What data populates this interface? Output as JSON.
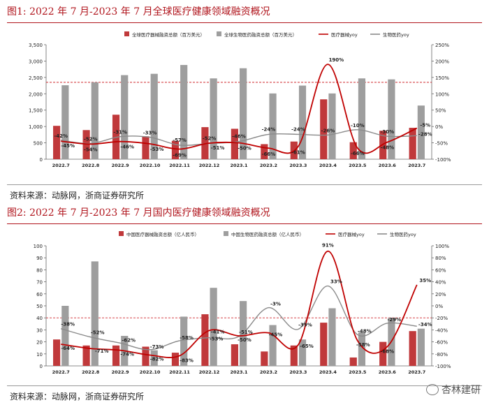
{
  "figures": [
    {
      "title": "图1:   2022 年 7 月-2023 年 7 月全球医疗健康领域融资概况",
      "source": "资料来源：动脉网，浙商证券研究所",
      "chart_data": {
        "type": "bar",
        "categories": [
          "2022.7",
          "2022.8",
          "2022.9",
          "2022.10",
          "2022.11",
          "2022.12",
          "2023.1",
          "2023.2",
          "2023.3",
          "2023.4",
          "2023.5",
          "2023.6",
          "2023.7"
        ],
        "bar_series": [
          {
            "name": "全球医疗器械融资总额（百万美元）",
            "color": "#c0393b",
            "values": [
              1020,
              890,
              1360,
              700,
              560,
              980,
              930,
              460,
              540,
              1830,
              520,
              870,
              960
            ]
          },
          {
            "name": "全球生物医药融资总额（百万美元）",
            "color": "#9e9e9e",
            "values": [
              2260,
              2350,
              2570,
              2610,
              2880,
              2470,
              2780,
              2010,
              2250,
              2010,
              2470,
              2440,
              1640
            ]
          }
        ],
        "line_series": [
          {
            "name": "医疗器械yoy",
            "color": "#c00000",
            "values": [
              -45,
              -54,
              -46,
              -53,
              -69,
              -51,
              -50,
              -66,
              -61,
              190,
              -66,
              -48,
              -5
            ],
            "labels": [
              "-45%",
              "-54%",
              "-46%",
              "-53%",
              "-69%",
              "-51%",
              "-50%",
              "-66%",
              "-61%",
              "190%",
              "-66%",
              "-48%",
              "-5%"
            ]
          },
          {
            "name": "生物医药yoy",
            "color": "#8a8a8a",
            "values": [
              -42,
              -52,
              -31,
              -33,
              -57,
              -52,
              -46,
              -24,
              -24,
              -26,
              -10,
              -30,
              -28
            ],
            "labels": [
              "-42%",
              "-52%",
              "-31%",
              "-33%",
              "-57%",
              "-52%",
              "-46%",
              "-24%",
              "-24%",
              "-26%",
              "-10%",
              "-30%",
              "-28%"
            ]
          }
        ],
        "y_left": {
          "min": 0,
          "max": 3500,
          "ticks": [
            0,
            500,
            1000,
            1500,
            2000,
            2500,
            3000,
            3500
          ],
          "tick_labels": [
            "0",
            "500",
            "1,000",
            "1,500",
            "2,000",
            "2,500",
            "3,000",
            "3,500"
          ]
        },
        "y_right": {
          "min": -100,
          "max": 250,
          "ticks": [
            -100,
            -50,
            0,
            50,
            100,
            150,
            200,
            250
          ],
          "tick_labels": [
            "-100%",
            "-50%",
            "0%",
            "50%",
            "100%",
            "150%",
            "200%",
            "250%"
          ]
        },
        "ref_line_right": 135,
        "legend_position": "top"
      }
    },
    {
      "title": "图2:   2022 年 7 月-2023 年 7 月国内医疗健康领域融资概况",
      "source": "资料来源：动脉网，浙商证券研究所",
      "chart_data": {
        "type": "bar",
        "categories": [
          "2022.7",
          "2022.8",
          "2022.9",
          "2022.10",
          "2022.11",
          "2022.12",
          "2023.1",
          "2023.2",
          "2023.3",
          "2023.4",
          "2023.5",
          "2023.6",
          "2023.7"
        ],
        "bar_series": [
          {
            "name": "中国医疗器械融资总额（亿人民币）",
            "color": "#c0393b",
            "values": [
              22,
              17,
              17,
              16,
              11,
              43,
              18,
              12,
              17,
              36,
              7,
              20,
              29
            ]
          },
          {
            "name": "中国生物医药融资总额（亿人民币）",
            "color": "#9e9e9e",
            "values": [
              50,
              87,
              25,
              13,
              41,
              65,
              54,
              34,
              22,
              48,
              28,
              40,
              31
            ]
          }
        ],
        "line_series": [
          {
            "name": "医疗器械yoy",
            "color": "#c00000",
            "values": [
              -64,
              -71,
              -74,
              -82,
              -83,
              -41,
              -50,
              -45,
              -65,
              91,
              -58,
              -68,
              35
            ],
            "labels": [
              "-64%",
              "-71%",
              "-74%",
              "-82%",
              "-83%",
              "-41%",
              "-50%",
              "-45%",
              "-65%",
              "91%",
              "-58%",
              "-68%",
              "35%"
            ]
          },
          {
            "name": "生物医药yoy",
            "color": "#8a8a8a",
            "values": [
              -38,
              -52,
              -62,
              -73,
              -58,
              -53,
              -51,
              -3,
              -39,
              33,
              -48,
              -29,
              -34
            ],
            "labels": [
              "-38%",
              "-52%",
              "-62%",
              "-73%",
              "-58%",
              "-53%",
              "-51%",
              "-3%",
              "-39%",
              "33%",
              "-48%",
              "-29%",
              "-34%"
            ]
          }
        ],
        "y_left": {
          "min": 0,
          "max": 100,
          "ticks": [
            0,
            10,
            20,
            30,
            40,
            50,
            60,
            70,
            80,
            90,
            100
          ],
          "tick_labels": [
            "0",
            "10",
            "20",
            "30",
            "40",
            "50",
            "60",
            "70",
            "80",
            "90",
            "100"
          ]
        },
        "y_right": {
          "min": -100,
          "max": 100,
          "ticks": [
            -100,
            -80,
            -60,
            -40,
            -20,
            0,
            20,
            40,
            60,
            80,
            100
          ],
          "tick_labels": [
            "-100%",
            "-80%",
            "-60%",
            "-40%",
            "-20%",
            "0%",
            "20%",
            "40%",
            "60%",
            "80%",
            "100%"
          ]
        },
        "ref_line_right": -20,
        "legend_position": "top"
      }
    }
  ],
  "watermark": "杏林建研",
  "watermark_icon": "wechat-icon"
}
